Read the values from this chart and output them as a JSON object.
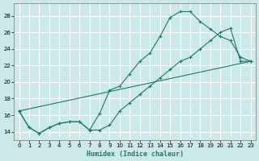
{
  "xlabel": "Humidex (Indice chaleur)",
  "xlim": [
    -0.5,
    23.5
  ],
  "ylim": [
    13.0,
    29.5
  ],
  "xticks": [
    0,
    1,
    2,
    3,
    4,
    5,
    6,
    7,
    8,
    9,
    10,
    11,
    12,
    13,
    14,
    15,
    16,
    17,
    18,
    19,
    20,
    21,
    22,
    23
  ],
  "yticks": [
    14,
    16,
    18,
    20,
    22,
    24,
    26,
    28
  ],
  "background_color": "#cce9e9",
  "grid_color": "#b0d8d8",
  "line_color": "#1a7a6e",
  "line1_x": [
    0,
    1,
    2,
    3,
    4,
    5,
    6,
    7,
    8,
    9,
    10,
    11,
    12,
    13,
    14,
    15,
    16,
    17,
    18,
    19,
    20,
    21,
    22,
    23
  ],
  "line1_y": [
    16.5,
    14.5,
    13.8,
    14.5,
    15.0,
    15.2,
    15.2,
    14.2,
    16.2,
    19.0,
    19.5,
    21.0,
    22.5,
    23.5,
    25.5,
    27.8,
    28.5,
    28.5,
    27.3,
    26.4,
    25.5,
    25.0,
    23.0,
    22.5
  ],
  "line2_x": [
    0,
    1,
    2,
    3,
    4,
    5,
    6,
    7,
    8,
    9,
    10,
    11,
    12,
    13,
    14,
    15,
    16,
    17,
    18,
    19,
    20,
    21,
    22,
    23
  ],
  "line2_y": [
    16.5,
    14.5,
    13.8,
    14.5,
    15.0,
    15.2,
    15.2,
    14.2,
    14.2,
    14.8,
    16.5,
    17.5,
    18.5,
    19.5,
    20.5,
    21.5,
    22.5,
    23.0,
    24.0,
    25.0,
    26.0,
    26.5,
    22.5,
    22.5
  ],
  "line3_x": [
    0,
    23
  ],
  "line3_y": [
    16.5,
    22.5
  ]
}
